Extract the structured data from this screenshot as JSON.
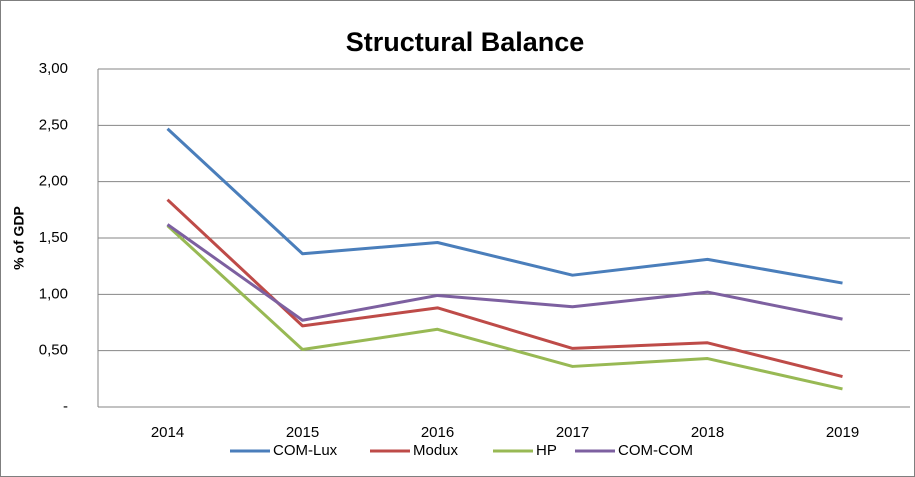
{
  "chart_data": {
    "type": "line",
    "title": "Structural Balance",
    "y_label": "% of GDP",
    "categories": [
      "2014",
      "2015",
      "2016",
      "2017",
      "2018",
      "2019"
    ],
    "series": [
      {
        "name": "COM-Lux",
        "color": "#4a7ebb",
        "values": [
          2.47,
          1.36,
          1.46,
          1.17,
          1.31,
          1.1
        ]
      },
      {
        "name": "Modux",
        "color": "#be4b48",
        "values": [
          1.84,
          0.72,
          0.88,
          0.52,
          0.57,
          0.27
        ]
      },
      {
        "name": "HP",
        "color": "#98b954",
        "values": [
          1.61,
          0.51,
          0.69,
          0.36,
          0.43,
          0.16
        ]
      },
      {
        "name": "COM-COM",
        "color": "#7d60a0",
        "values": [
          1.62,
          0.77,
          0.99,
          0.89,
          1.02,
          0.78
        ]
      }
    ],
    "ylim": [
      0,
      3
    ],
    "yticks": [
      {
        "value": 0,
        "label": "-"
      },
      {
        "value": 0.5,
        "label": "0,50"
      },
      {
        "value": 1,
        "label": "1,00"
      },
      {
        "value": 1.5,
        "label": "1,50"
      },
      {
        "value": 2,
        "label": "2,00"
      },
      {
        "value": 2.5,
        "label": "2,50"
      },
      {
        "value": 3,
        "label": "3,00"
      }
    ],
    "grid": true
  }
}
